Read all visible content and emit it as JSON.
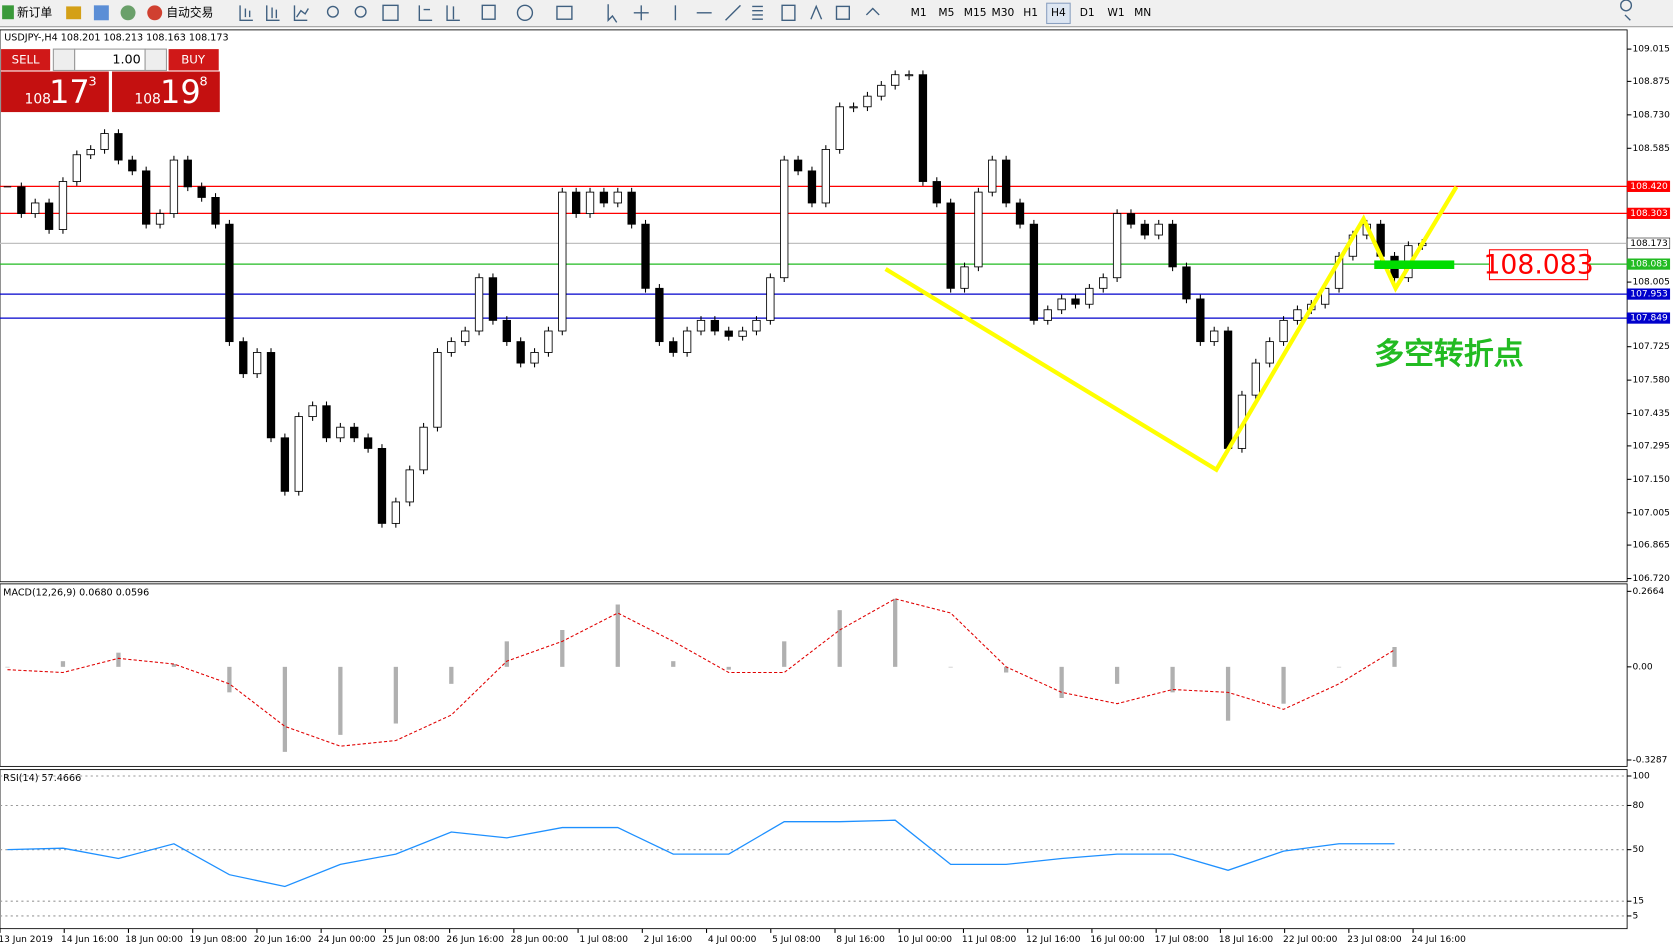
{
  "toolbar": {
    "new_order": "新订单",
    "auto_trading": "自动交易",
    "timeframes": [
      "M1",
      "M5",
      "M15",
      "M30",
      "H1",
      "H4",
      "D1",
      "W1",
      "MN"
    ]
  },
  "symbol_info": "USDJPY-,H4  108.201 108.213 108.163 108.173",
  "trade_panel": {
    "sell": "SELL",
    "buy": "BUY",
    "lots": "1.00",
    "sell_big": "108",
    "sell_price": "17",
    "sell_pip": "3",
    "buy_big": "108",
    "buy_price": "19",
    "buy_pip": "8"
  },
  "annotation": "多空转折点",
  "x_labels": [
    "13 Jun 2019",
    "14 Jun 16:00",
    "18 Jun 00:00",
    "19 Jun 08:00",
    "20 Jun 16:00",
    "24 Jun 00:00",
    "25 Jun 08:00",
    "26 Jun 16:00",
    "28 Jun 00:00",
    "1 Jul 08:00",
    "2 Jul 16:00",
    "4 Jul 00:00",
    "5 Jul 08:00",
    "8 Jul 16:00",
    "10 Jul 00:00",
    "11 Jul 08:00",
    "12 Jul 16:00",
    "16 Jul 00:00",
    "17 Jul 08:00",
    "18 Jul 16:00",
    "22 Jul 00:00",
    "23 Jul 08:00",
    "24 Jul 16:00"
  ],
  "chart_data": [
    {
      "type": "candlestick",
      "values": [
        108.418,
        108.302,
        108.348,
        108.233,
        108.441,
        108.557,
        108.58,
        108.649,
        108.534,
        108.487,
        108.256,
        108.302,
        108.534,
        108.418,
        108.372,
        108.256,
        107.747,
        107.608,
        107.7,
        107.33,
        107.098,
        107.422,
        107.469,
        107.33,
        107.376,
        107.33,
        107.284,
        106.959,
        107.052,
        107.191,
        107.376,
        107.7,
        107.747,
        107.793,
        108.024,
        107.839,
        107.747,
        107.654,
        107.7,
        107.793,
        108.395,
        108.302,
        108.395,
        108.348,
        108.395,
        108.256,
        107.978,
        107.747,
        107.7,
        107.793,
        107.839,
        107.793,
        107.77,
        107.793,
        107.839,
        108.024,
        108.534,
        108.487,
        108.348,
        108.58,
        108.765,
        108.765,
        108.811,
        108.858,
        108.904,
        108.904,
        108.441,
        108.348,
        107.978,
        108.071,
        108.395,
        108.534,
        108.348,
        108.256,
        107.839,
        107.885,
        107.932,
        107.909,
        107.978,
        108.024,
        108.302,
        108.256,
        108.209,
        108.256,
        108.071,
        107.932,
        107.747,
        107.793,
        107.284,
        107.515,
        107.654,
        107.747,
        107.839,
        107.885,
        107.909,
        107.978,
        108.117,
        108.209,
        108.256,
        108.117,
        108.024,
        108.163,
        108.173
      ],
      "ylim": [
        106.72,
        109.015
      ],
      "yticks": [
        109.015,
        108.875,
        {
          "value": 108.73,
          "label": "108.730"
        },
        108.585,
        108.005,
        107.725,
        {
          "value": 107.58,
          "label": "107.580"
        },
        107.435,
        107.295,
        {
          "value": 107.15,
          "label": "107.150"
        },
        107.005,
        106.865,
        {
          "value": 106.72,
          "label": "106.720"
        }
      ],
      "levels": [
        {
          "value": 108.42,
          "label": "108.420",
          "color": "#ff0000"
        },
        {
          "value": 108.303,
          "label": "108.303",
          "color": "#ff0000"
        },
        {
          "value": 108.173,
          "label": "108.173",
          "color": "#c0c0c0"
        },
        {
          "value": 108.083,
          "label": "108.083",
          "color": "#22bb22"
        },
        {
          "value": 107.953,
          "label": "107.953",
          "color": "#0000cc"
        },
        {
          "value": 107.849,
          "label": "107.849",
          "color": "#0000cc"
        }
      ]
    },
    {
      "type": "macd",
      "title": "MACD(12,26,9) 0.0680 0.0596",
      "histogram": [
        0.0,
        0.02,
        0.05,
        0.01,
        -0.09,
        -0.3,
        -0.24,
        -0.2,
        -0.06,
        0.09,
        0.13,
        0.22,
        0.02,
        -0.01,
        0.09,
        0.2,
        0.24,
        0.0,
        -0.02,
        -0.11,
        -0.06,
        -0.09,
        -0.19,
        -0.13,
        0.0,
        0.07
      ],
      "signal": [
        -0.01,
        -0.02,
        0.03,
        0.01,
        -0.06,
        -0.21,
        -0.28,
        -0.26,
        -0.17,
        0.02,
        0.09,
        0.19,
        0.09,
        -0.02,
        -0.02,
        0.13,
        0.24,
        0.19,
        0.0,
        -0.09,
        -0.13,
        -0.08,
        -0.09,
        -0.15,
        -0.06,
        0.06
      ],
      "histogram_color": "#b0b0b0",
      "signal_color": "#e00000",
      "ylim": [
        -0.3287,
        0.2664
      ],
      "yticks": [
        0.2664,
        {
          "value": 0,
          "label": "0.00"
        },
        -0.3287
      ]
    },
    {
      "type": "line",
      "title": "RSI(14) 57.4666",
      "color": "#1e90ff",
      "values": [
        50,
        51,
        44,
        54,
        33,
        25,
        40,
        47,
        62,
        58,
        65,
        65,
        47,
        47,
        69,
        69,
        70,
        40,
        40,
        44,
        47,
        47,
        36,
        49,
        54,
        54
      ],
      "ylim": [
        0,
        100
      ],
      "yticks": [
        100,
        80,
        50,
        15,
        5
      ]
    }
  ]
}
